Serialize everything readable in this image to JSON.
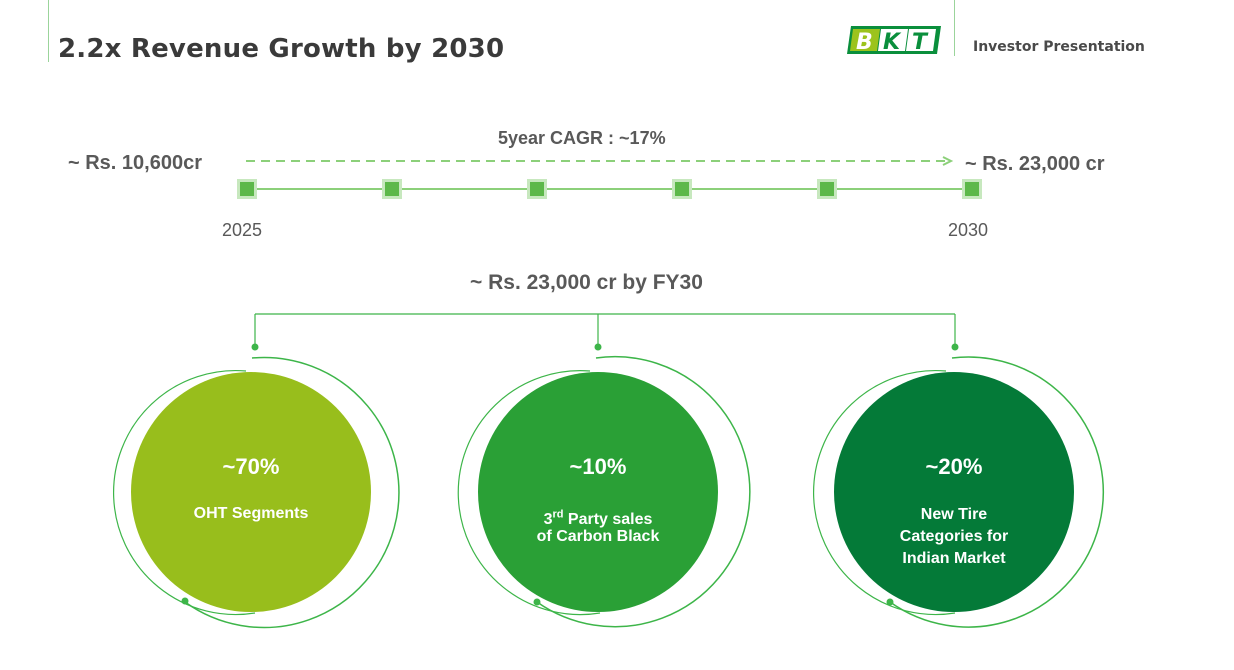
{
  "header": {
    "title": "2.2x Revenue Growth by 2030",
    "subtitle": "Investor Presentation",
    "logo_text": "BKT"
  },
  "timeline": {
    "start_value": "~ Rs. 10,600cr",
    "end_value": "~ Rs. 23,000 cr",
    "cagr": "5year CAGR : ~17%",
    "start_year": "2025",
    "end_year": "2030",
    "milestones": 6
  },
  "target": {
    "label": "~ Rs. 23,000 cr by FY30"
  },
  "segments": [
    {
      "percent": "~70%",
      "label_line1": "OHT Segments",
      "label_line2": "",
      "label_line3": "",
      "color": "#98BE1C"
    },
    {
      "percent": "~10%",
      "label_line1": "3rd Party sales",
      "label_line2": "of Carbon Black",
      "label_line3": "",
      "color": "#2AA036"
    },
    {
      "percent": "~20%",
      "label_line1": "New Tire",
      "label_line2": "Categories for",
      "label_line3": "Indian Market",
      "color": "#047A38"
    }
  ],
  "colors": {
    "accent_green": "#3DB549",
    "light_green": "#8CD07A",
    "dark_green": "#047A38",
    "lime": "#98BE1C"
  }
}
